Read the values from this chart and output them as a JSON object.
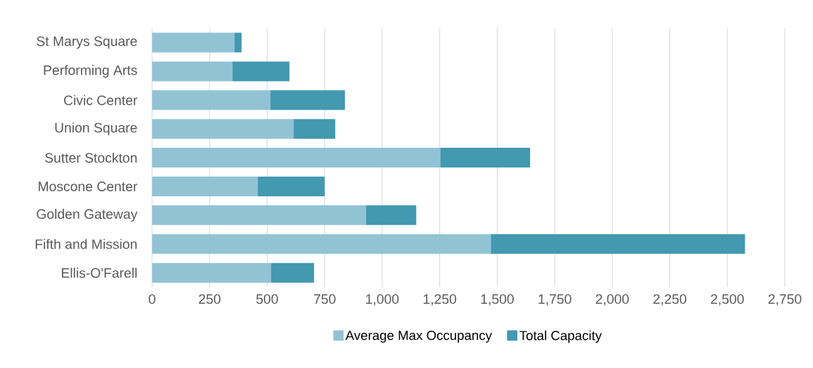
{
  "chart_data": {
    "type": "bar",
    "orientation": "horizontal",
    "stacked": true,
    "categories": [
      "St Marys Square",
      "Performing Arts",
      "Civic Center",
      "Union Square",
      "Sutter Stockton",
      "Moscone Center",
      "Golden Gateway",
      "Fifth and Mission",
      "Ellis-O'Farell"
    ],
    "series": [
      {
        "name": "Average Max Occupancy",
        "color": "#92c3d4",
        "values": [
          358,
          349,
          514,
          615,
          1252,
          459,
          930,
          1472,
          517
        ]
      },
      {
        "name": "Total Capacity",
        "color": "#4299b0",
        "values": [
          31,
          248,
          324,
          181,
          391,
          291,
          218,
          1105,
          187
        ]
      }
    ],
    "xlim": [
      0,
      2750
    ],
    "xticks": [
      0,
      250,
      500,
      750,
      {
        "value": 1000,
        "label": "1,000"
      },
      {
        "value": 1250,
        "label": "1,250"
      },
      {
        "value": 1500,
        "label": "1,500"
      },
      {
        "value": 1750,
        "label": "1,750"
      },
      {
        "value": 2000,
        "label": "2,000"
      },
      {
        "value": 2250,
        "label": "2,250"
      },
      {
        "value": 2500,
        "label": "2,500"
      },
      {
        "value": 2750,
        "label": "2,750"
      }
    ],
    "grid": "x",
    "legend": "bottom"
  }
}
